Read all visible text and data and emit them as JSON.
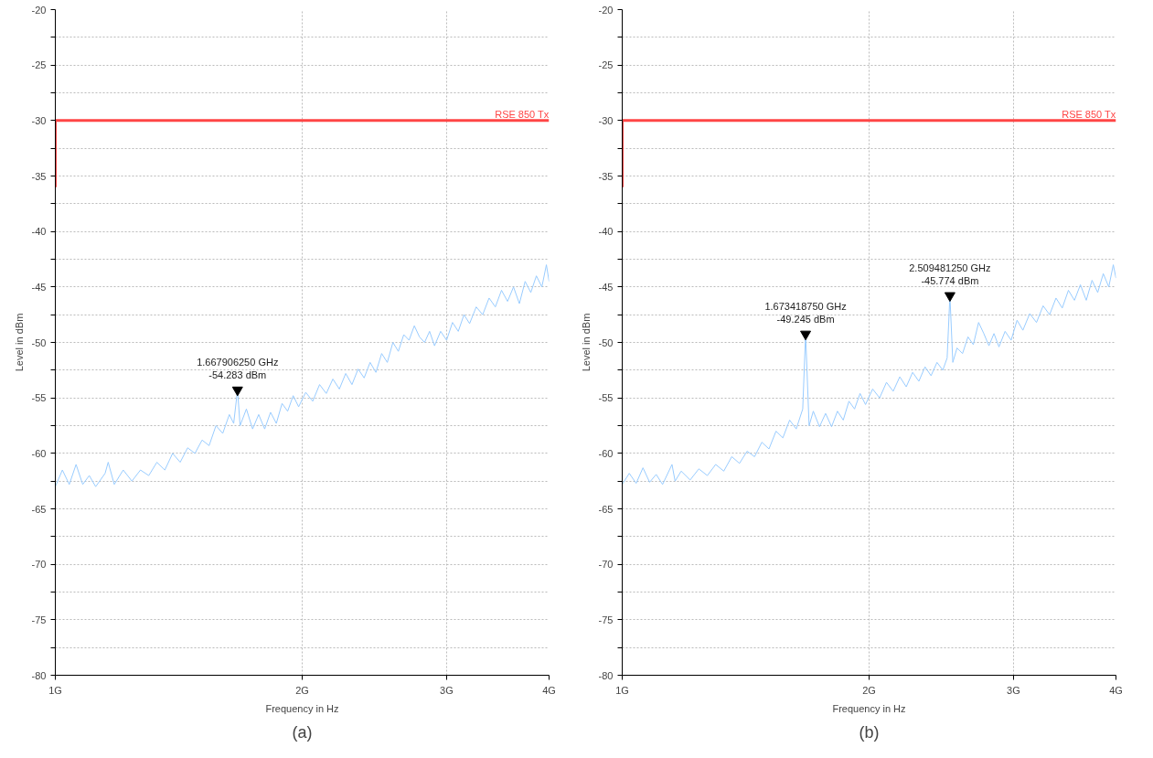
{
  "chart_data": [
    {
      "type": "line",
      "title": "(a)",
      "xlabel": "Frequency in Hz",
      "ylabel": "Level in dBm",
      "log": "x",
      "grid": true,
      "xlim": [
        1,
        4
      ],
      "xticks": [
        {
          "value": 1,
          "label": "1G"
        },
        {
          "value": 2,
          "label": "2G"
        },
        {
          "value": 3,
          "label": "3G"
        },
        {
          "value": 4,
          "label": "4G"
        }
      ],
      "ylim": [
        -80,
        -20
      ],
      "yticks": [
        -80,
        {
          "value": -77.5,
          "label": null
        },
        -75,
        {
          "value": -72.5,
          "label": null
        },
        -70,
        {
          "value": -67.5,
          "label": null
        },
        -65,
        {
          "value": -62.5,
          "label": null
        },
        -60,
        {
          "value": -57.5,
          "label": null
        },
        -55,
        {
          "value": -52.5,
          "label": null
        },
        -50,
        {
          "value": -47.5,
          "label": null
        },
        -45,
        {
          "value": -42.5,
          "label": null
        },
        -40,
        {
          "value": -37.5,
          "label": null
        },
        -35,
        {
          "value": -32.5,
          "label": null
        },
        -30,
        {
          "value": -27.5,
          "label": null
        },
        -25,
        {
          "value": -22.5,
          "label": null
        },
        -20
      ],
      "series": [
        {
          "color": "#99ccff",
          "x": [
            1.0,
            1.02,
            1.04,
            1.06,
            1.08,
            1.1,
            1.12,
            1.15,
            1.16,
            1.18,
            1.21,
            1.24,
            1.27,
            1.3,
            1.33,
            1.36,
            1.39,
            1.42,
            1.45,
            1.48,
            1.51,
            1.54,
            1.57,
            1.6,
            1.63,
            1.65,
            1.667906,
            1.68,
            1.71,
            1.74,
            1.77,
            1.8,
            1.83,
            1.86,
            1.89,
            1.92,
            1.95,
            1.98,
            2.02,
            2.06,
            2.1,
            2.14,
            2.18,
            2.22,
            2.26,
            2.3,
            2.34,
            2.38,
            2.42,
            2.46,
            2.5,
            2.54,
            2.58,
            2.62,
            2.66,
            2.7,
            2.74,
            2.78,
            2.82,
            2.86,
            2.9,
            2.95,
            3.0,
            3.05,
            3.1,
            3.15,
            3.2,
            3.26,
            3.32,
            3.38,
            3.44,
            3.5,
            3.56,
            3.62,
            3.68,
            3.74,
            3.8,
            3.86,
            3.92,
            3.97,
            4.0
          ],
          "values": [
            -63.0,
            -61.5,
            -62.8,
            -61.0,
            -62.8,
            -62.0,
            -63.0,
            -61.8,
            -60.8,
            -62.8,
            -61.5,
            -62.5,
            -61.5,
            -62.0,
            -60.8,
            -61.5,
            -60.0,
            -60.8,
            -59.5,
            -60.0,
            -58.8,
            -59.3,
            -57.5,
            -58.2,
            -56.5,
            -57.3,
            -54.283,
            -57.5,
            -56.0,
            -57.8,
            -56.5,
            -57.8,
            -56.3,
            -57.3,
            -55.5,
            -56.2,
            -54.8,
            -55.8,
            -54.5,
            -55.3,
            -53.8,
            -54.6,
            -53.3,
            -54.2,
            -52.8,
            -53.8,
            -52.4,
            -53.2,
            -51.8,
            -52.7,
            -51.0,
            -51.8,
            -50.0,
            -50.8,
            -49.3,
            -49.8,
            -48.5,
            -49.5,
            -50.0,
            -49.0,
            -50.3,
            -49.0,
            -49.8,
            -48.2,
            -49.0,
            -47.5,
            -48.3,
            -46.8,
            -47.5,
            -46.0,
            -46.8,
            -45.3,
            -46.3,
            -45.0,
            -46.5,
            -44.5,
            -45.5,
            -44.0,
            -45.0,
            -43.0,
            -44.5
          ]
        },
        {
          "name": "RSE 850 Tx",
          "color": "#ff4545",
          "x": [
            1,
            1,
            4
          ],
          "values": [
            -36,
            -30,
            -30
          ]
        }
      ],
      "annotations": [
        {
          "text": "1.667906250 GHz\n-54.283 dBm",
          "x": 1.667906,
          "y": -54.283
        }
      ]
    },
    {
      "type": "line",
      "title": "(b)",
      "xlabel": "Frequency in Hz",
      "ylabel": "Level in dBm",
      "log": "x",
      "grid": true,
      "xlim": [
        1,
        4
      ],
      "xticks": [
        {
          "value": 1,
          "label": "1G"
        },
        {
          "value": 2,
          "label": "2G"
        },
        {
          "value": 3,
          "label": "3G"
        },
        {
          "value": 4,
          "label": "4G"
        }
      ],
      "ylim": [
        -80,
        -20
      ],
      "yticks": [
        -80,
        {
          "value": -77.5,
          "label": null
        },
        -75,
        {
          "value": -72.5,
          "label": null
        },
        -70,
        {
          "value": -67.5,
          "label": null
        },
        -65,
        {
          "value": -62.5,
          "label": null
        },
        -60,
        {
          "value": -57.5,
          "label": null
        },
        -55,
        {
          "value": -52.5,
          "label": null
        },
        -50,
        {
          "value": -47.5,
          "label": null
        },
        -45,
        {
          "value": -42.5,
          "label": null
        },
        -40,
        {
          "value": -37.5,
          "label": null
        },
        -35,
        {
          "value": -32.5,
          "label": null
        },
        -30,
        {
          "value": -27.5,
          "label": null
        },
        -25,
        {
          "value": -22.5,
          "label": null
        },
        -20
      ],
      "series": [
        {
          "color": "#99ccff",
          "x": [
            1.0,
            1.02,
            1.04,
            1.06,
            1.08,
            1.1,
            1.12,
            1.15,
            1.16,
            1.18,
            1.21,
            1.24,
            1.27,
            1.3,
            1.33,
            1.36,
            1.39,
            1.42,
            1.45,
            1.48,
            1.51,
            1.54,
            1.57,
            1.6,
            1.63,
            1.66,
            1.673419,
            1.69,
            1.71,
            1.74,
            1.77,
            1.8,
            1.83,
            1.86,
            1.89,
            1.92,
            1.95,
            1.98,
            2.02,
            2.06,
            2.1,
            2.14,
            2.18,
            2.22,
            2.26,
            2.3,
            2.34,
            2.38,
            2.42,
            2.46,
            2.49,
            2.509481,
            2.53,
            2.56,
            2.6,
            2.64,
            2.68,
            2.72,
            2.76,
            2.8,
            2.84,
            2.88,
            2.93,
            2.98,
            3.03,
            3.08,
            3.14,
            3.2,
            3.26,
            3.32,
            3.38,
            3.44,
            3.5,
            3.56,
            3.62,
            3.68,
            3.74,
            3.8,
            3.86,
            3.92,
            3.97,
            4.0
          ],
          "values": [
            -62.8,
            -61.8,
            -62.7,
            -61.3,
            -62.6,
            -61.9,
            -62.8,
            -61.0,
            -62.5,
            -61.6,
            -62.4,
            -61.4,
            -62.0,
            -61.0,
            -61.6,
            -60.3,
            -60.9,
            -59.8,
            -60.3,
            -59.0,
            -59.6,
            -58.0,
            -58.6,
            -57.0,
            -57.8,
            -56.0,
            -49.245,
            -57.5,
            -56.2,
            -57.6,
            -56.4,
            -57.6,
            -56.2,
            -57.0,
            -55.3,
            -56.0,
            -54.6,
            -55.6,
            -54.2,
            -55.0,
            -53.6,
            -54.4,
            -53.1,
            -54.0,
            -52.7,
            -53.5,
            -52.2,
            -53.0,
            -51.8,
            -52.5,
            -51.4,
            -45.774,
            -51.8,
            -50.5,
            -51.0,
            -49.5,
            -50.2,
            -48.2,
            -49.2,
            -50.3,
            -49.2,
            -50.4,
            -49.0,
            -49.8,
            -48.0,
            -48.9,
            -47.4,
            -48.2,
            -46.7,
            -47.5,
            -46.0,
            -46.9,
            -45.3,
            -46.2,
            -44.8,
            -46.2,
            -44.4,
            -45.5,
            -43.8,
            -45.0,
            -43.0,
            -44.2
          ]
        },
        {
          "name": "RSE 850 Tx",
          "color": "#ff4545",
          "x": [
            1,
            1,
            4
          ],
          "values": [
            -36,
            -30,
            -30
          ]
        }
      ],
      "annotations": [
        {
          "text": "1.673418750 GHz\n-49.245 dBm",
          "x": 1.673419,
          "y": -49.245
        },
        {
          "text": "2.509481250 GHz\n-45.774 dBm",
          "x": 2.509481,
          "y": -45.774
        }
      ]
    }
  ]
}
